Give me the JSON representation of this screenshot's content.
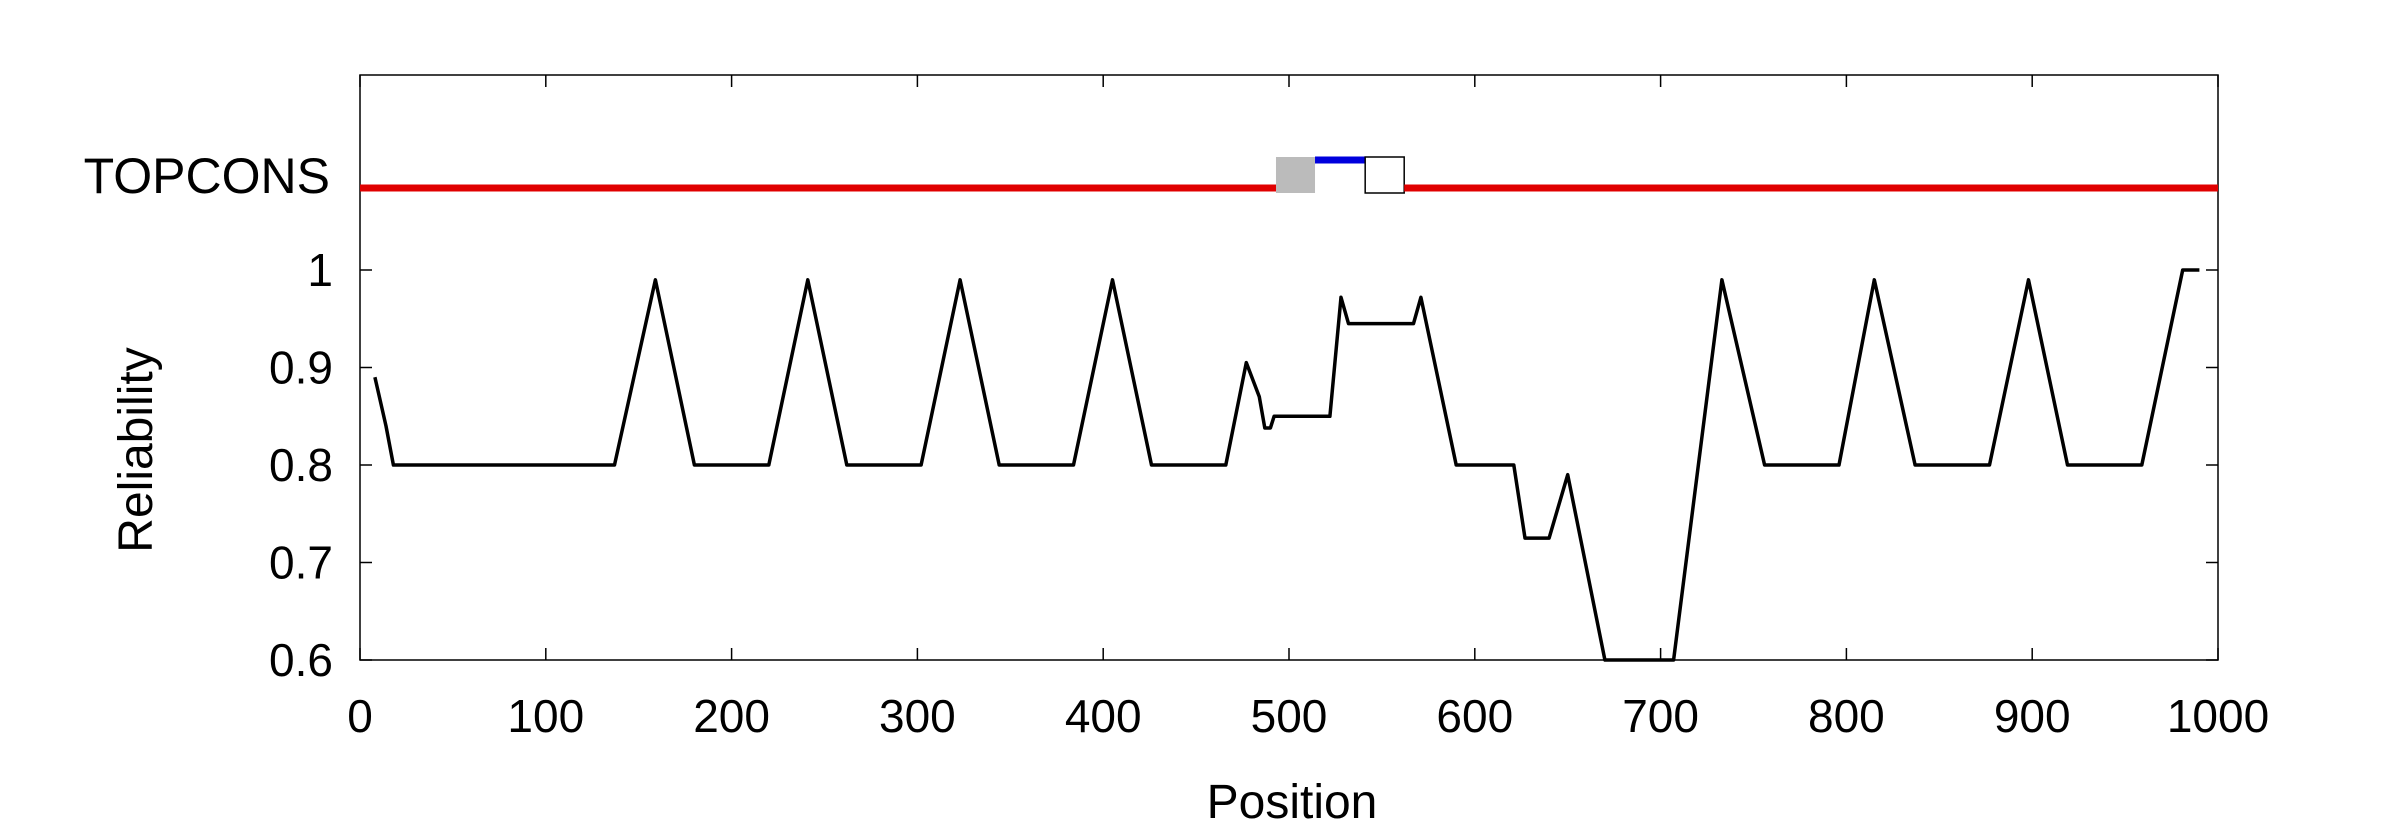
{
  "chart_data": {
    "type": "line",
    "title": "",
    "xlabel": "Position",
    "ylabel": "Reliability",
    "xlim": [
      0,
      1000
    ],
    "ylim": [
      0.6,
      1.0
    ],
    "x_ticks": [
      0,
      100,
      200,
      300,
      400,
      500,
      600,
      700,
      800,
      900,
      1000
    ],
    "x_tick_labels": [
      "0",
      "100",
      "200",
      "300",
      "400",
      "500",
      "600",
      "700",
      "800",
      "900",
      "1000"
    ],
    "y_ticks": [
      0.6,
      0.7,
      0.8,
      0.9,
      1.0
    ],
    "y_tick_labels": [
      "0.6",
      "0.7",
      "0.8",
      "0.9",
      "1"
    ],
    "grid": false,
    "series": [
      {
        "color": "#000000",
        "points": [
          [
            8,
            0.89
          ],
          [
            14,
            0.84
          ],
          [
            18,
            0.8
          ],
          [
            137,
            0.8
          ],
          [
            159,
            0.99
          ],
          [
            180,
            0.8
          ],
          [
            220,
            0.8
          ],
          [
            241,
            0.99
          ],
          [
            262,
            0.8
          ],
          [
            302,
            0.8
          ],
          [
            323,
            0.99
          ],
          [
            344,
            0.8
          ],
          [
            384,
            0.8
          ],
          [
            405,
            0.99
          ],
          [
            426,
            0.8
          ],
          [
            466,
            0.8
          ],
          [
            477,
            0.905
          ],
          [
            484,
            0.87
          ],
          [
            487,
            0.838
          ],
          [
            490,
            0.838
          ],
          [
            492,
            0.85
          ],
          [
            522,
            0.85
          ],
          [
            528,
            0.972
          ],
          [
            532,
            0.945
          ],
          [
            567,
            0.945
          ],
          [
            571,
            0.972
          ],
          [
            590,
            0.8
          ],
          [
            621,
            0.8
          ],
          [
            627,
            0.725
          ],
          [
            640,
            0.725
          ],
          [
            650,
            0.79
          ],
          [
            670,
            0.6
          ],
          [
            707,
            0.6
          ],
          [
            733,
            0.99
          ],
          [
            756,
            0.8
          ],
          [
            796,
            0.8
          ],
          [
            815,
            0.99
          ],
          [
            837,
            0.8
          ],
          [
            877,
            0.8
          ],
          [
            898,
            0.99
          ],
          [
            919,
            0.8
          ],
          [
            959,
            0.8
          ],
          [
            981,
            1.0
          ],
          [
            990,
            1.0
          ]
        ]
      }
    ],
    "topology_track": {
      "label": "TOPCONS",
      "segments": [
        {
          "type": "red-line",
          "start": 0,
          "end": 493,
          "color": "#e00000"
        },
        {
          "type": "gray-box",
          "start": 493,
          "end": 514,
          "color": "#bbbbbb"
        },
        {
          "type": "blue-line",
          "start": 514,
          "end": 541,
          "color": "#0000dd"
        },
        {
          "type": "white-box",
          "start": 541,
          "end": 562,
          "color": "#ffffff"
        },
        {
          "type": "red-line",
          "start": 562,
          "end": 1000,
          "color": "#e00000"
        }
      ]
    }
  }
}
